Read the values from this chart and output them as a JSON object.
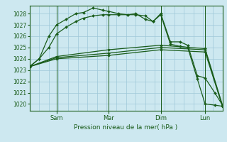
{
  "background_color": "#cde8f0",
  "grid_color": "#9ec8d8",
  "line_color": "#1a5c1a",
  "title": "Pression niveau de la mer( hPa )",
  "ylabel_values": [
    1020,
    1021,
    1022,
    1023,
    1024,
    1025,
    1026,
    1027,
    1028
  ],
  "x_ticks_labels": [
    "Sam",
    "Mar",
    "Dim",
    "Lun"
  ],
  "x_ticks_pos": [
    0.14,
    0.41,
    0.68,
    0.91
  ],
  "xlim": [
    0,
    1.0
  ],
  "ylim": [
    1019.4,
    1028.7
  ],
  "series": [
    {
      "x": [
        0.0,
        0.05,
        0.1,
        0.14,
        0.19,
        0.24,
        0.28,
        0.33,
        0.38,
        0.41,
        0.46,
        0.51,
        0.55,
        0.6,
        0.64,
        0.68,
        0.73,
        0.78,
        0.82,
        0.87,
        0.91,
        0.96,
        1.0
      ],
      "y": [
        1023.3,
        1024.0,
        1026.0,
        1027.0,
        1027.5,
        1028.0,
        1028.1,
        1028.5,
        1028.3,
        1028.2,
        1028.0,
        1027.9,
        1027.9,
        1027.8,
        1027.3,
        1028.0,
        1025.5,
        1025.5,
        1025.2,
        1022.5,
        1022.3,
        1021.0,
        1019.9
      ]
    },
    {
      "x": [
        0.0,
        0.05,
        0.1,
        0.14,
        0.19,
        0.24,
        0.28,
        0.33,
        0.38,
        0.41,
        0.46,
        0.51,
        0.55,
        0.6,
        0.64,
        0.68,
        0.73,
        0.78,
        0.82,
        0.87,
        0.91,
        0.96,
        1.0
      ],
      "y": [
        1023.3,
        1024.0,
        1025.0,
        1026.2,
        1026.8,
        1027.3,
        1027.6,
        1027.8,
        1027.9,
        1027.9,
        1027.9,
        1027.9,
        1028.0,
        1027.5,
        1027.3,
        1027.9,
        1025.3,
        1025.1,
        1025.0,
        1022.2,
        1020.0,
        1019.9,
        1019.8
      ]
    },
    {
      "x": [
        0.0,
        0.14,
        0.41,
        0.68,
        0.91,
        1.0
      ],
      "y": [
        1023.3,
        1024.2,
        1024.8,
        1025.2,
        1024.9,
        1019.9
      ]
    },
    {
      "x": [
        0.0,
        0.14,
        0.41,
        0.68,
        0.91,
        1.0
      ],
      "y": [
        1023.3,
        1024.1,
        1024.5,
        1025.0,
        1024.8,
        1019.8
      ]
    },
    {
      "x": [
        0.0,
        0.14,
        0.41,
        0.68,
        0.91,
        1.0
      ],
      "y": [
        1023.3,
        1024.0,
        1024.3,
        1024.8,
        1024.6,
        1019.8
      ]
    }
  ],
  "marker_series": [
    0,
    1
  ],
  "line_series": [
    2,
    3,
    4
  ]
}
